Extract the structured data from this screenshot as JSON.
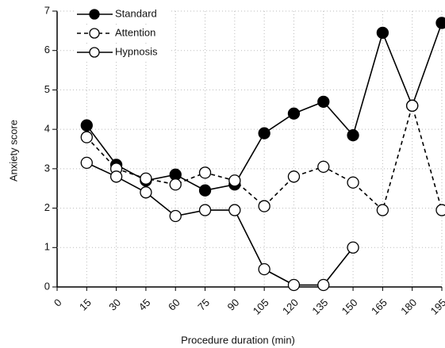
{
  "chart_data": {
    "type": "line",
    "xlabel": "Procedure duration (min)",
    "ylabel": "Anxiety score",
    "x": [
      15,
      30,
      45,
      60,
      75,
      90,
      105,
      120,
      135,
      150,
      165,
      180,
      195
    ],
    "xlim": [
      0,
      195
    ],
    "xticks": [
      0,
      15,
      30,
      45,
      60,
      75,
      90,
      105,
      120,
      135,
      150,
      165,
      180,
      195
    ],
    "ylim": [
      0,
      7
    ],
    "yticks": [
      0,
      1,
      2,
      3,
      4,
      5,
      6,
      7
    ],
    "grid": true,
    "legend": "upper left",
    "series": [
      {
        "name": "Standard",
        "color": "#000000",
        "dashed": false,
        "marker": "filled",
        "values": [
          4.1,
          3.1,
          2.7,
          2.85,
          2.45,
          2.6,
          3.9,
          4.4,
          4.7,
          3.85,
          6.45,
          4.6,
          6.7
        ]
      },
      {
        "name": "Attention",
        "color": "#000000",
        "dashed": true,
        "marker": "open",
        "values": [
          3.8,
          3.0,
          2.75,
          2.6,
          2.9,
          2.7,
          2.05,
          2.8,
          3.05,
          2.65,
          1.95,
          4.6,
          1.95
        ]
      },
      {
        "name": "Hypnosis",
        "color": "#000000",
        "dashed": false,
        "marker": "open",
        "values": [
          3.15,
          2.8,
          2.4,
          1.8,
          1.95,
          1.95,
          0.45,
          0.05,
          0.05,
          1.0,
          null,
          null,
          null
        ]
      }
    ]
  }
}
